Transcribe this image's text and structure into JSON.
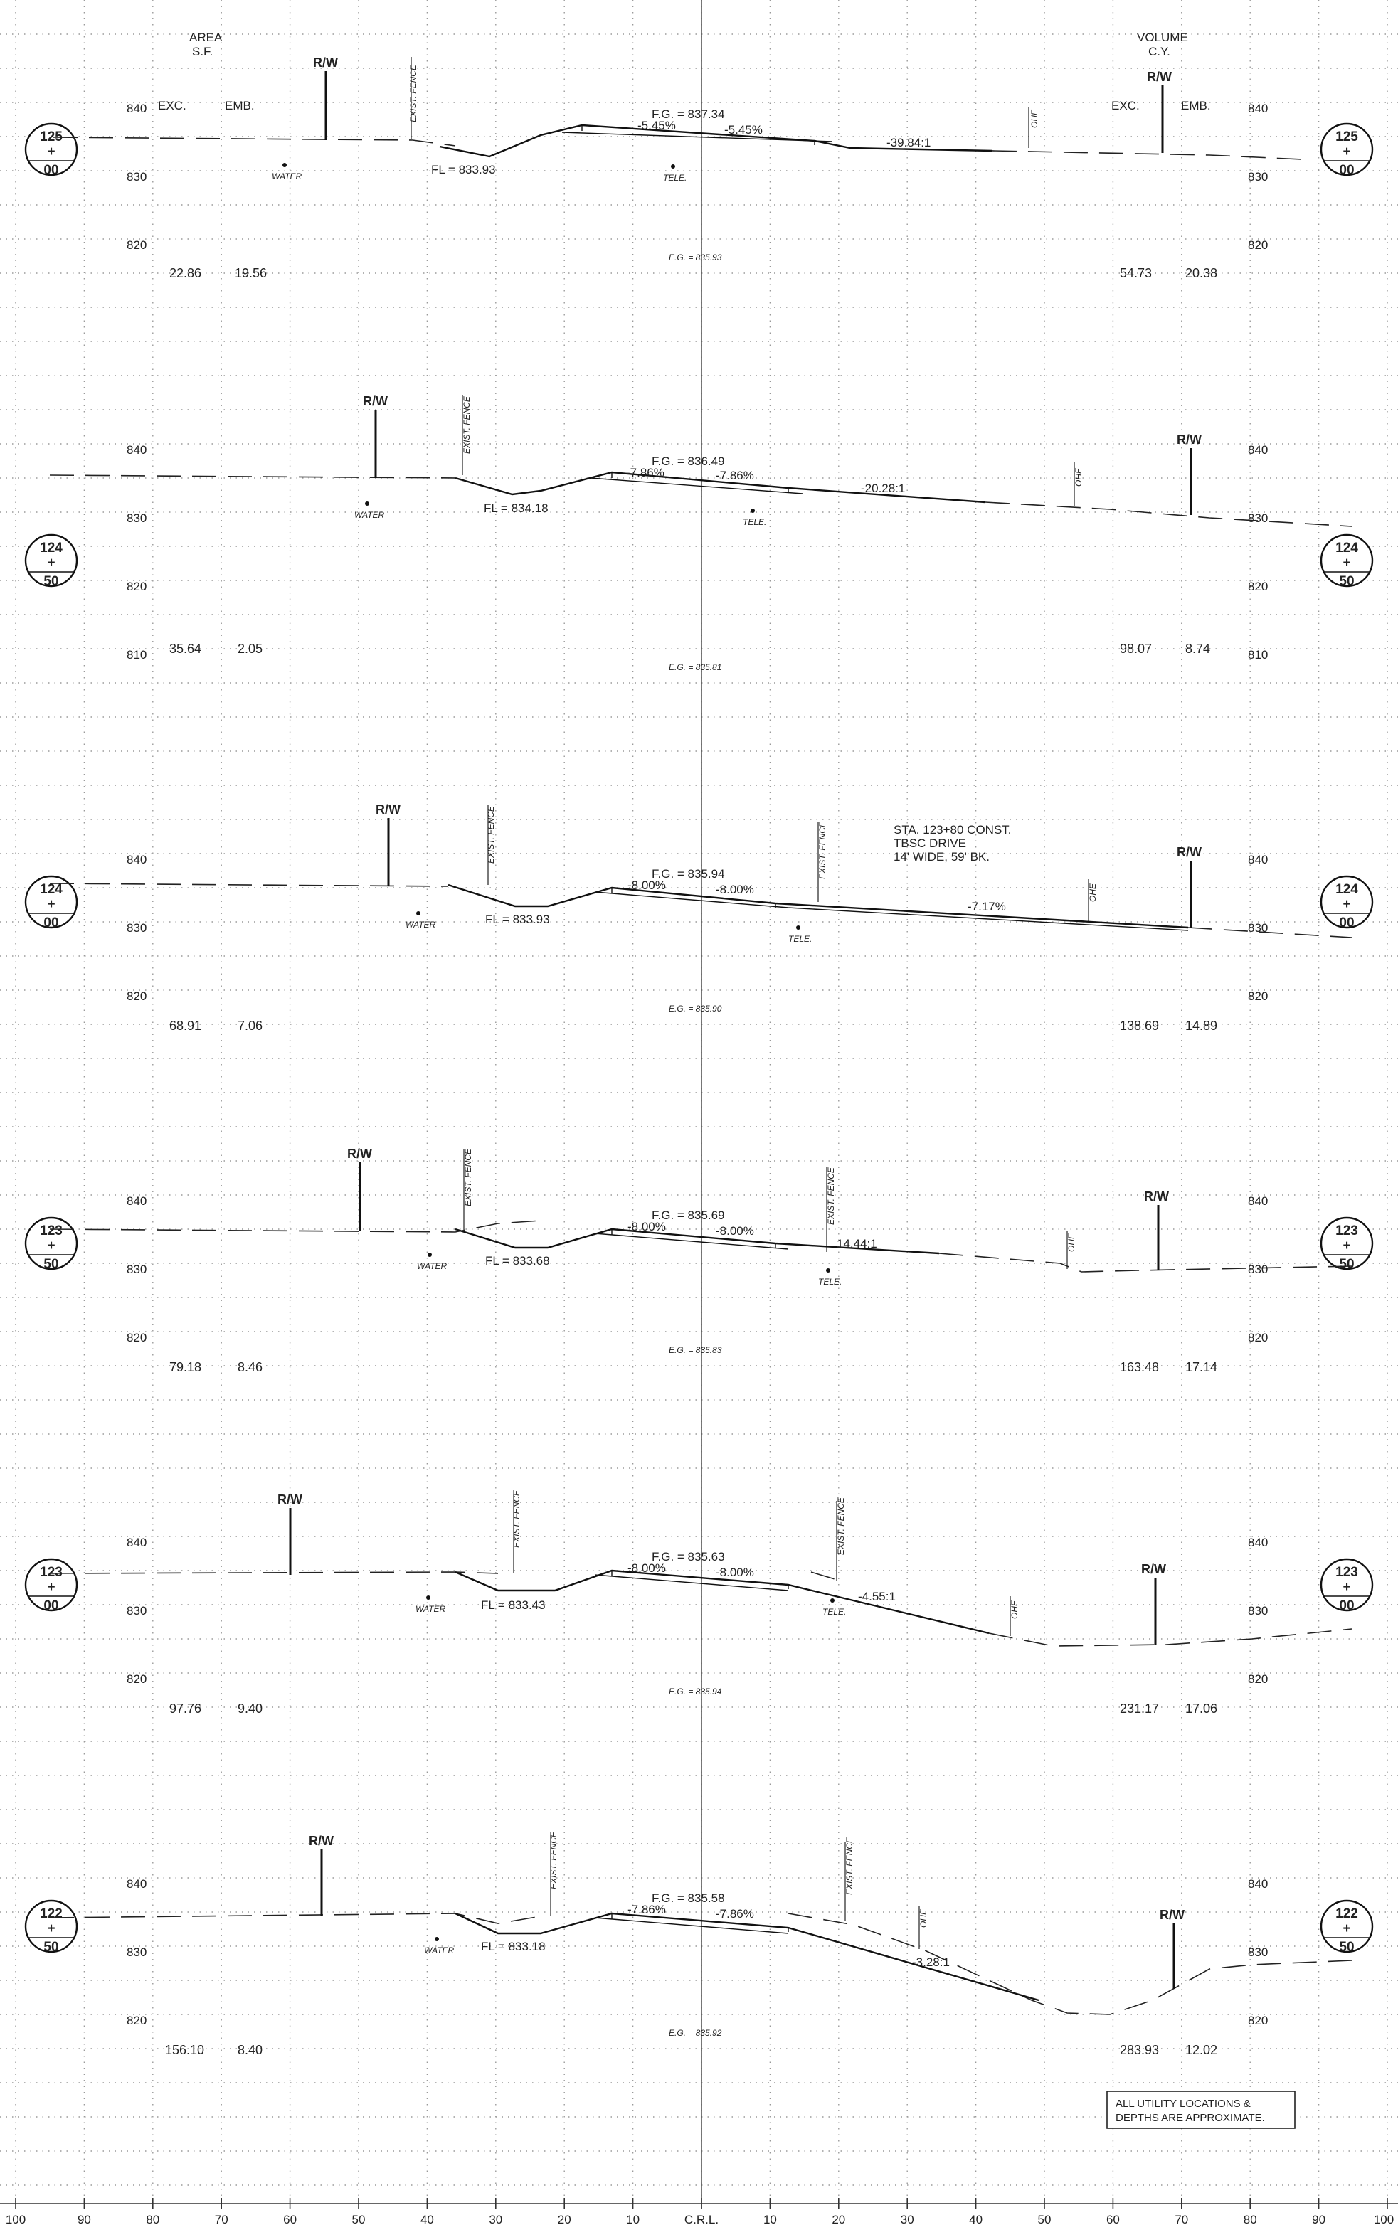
{
  "headers": {
    "area_title": "AREA",
    "area_unit": "S.F.",
    "volume_title": "VOLUME",
    "volume_unit": "C.Y.",
    "exc": "EXC.",
    "emb": "EMB."
  },
  "common": {
    "rw": "R/W",
    "water": "WATER",
    "tele": "TELE.",
    "ohe": "OHE",
    "fence": "EXIST. FENCE"
  },
  "sections": [
    {
      "station": [
        "125",
        "+",
        "00"
      ],
      "elev_labels": [
        "840",
        "830",
        "820"
      ],
      "fg": "F.G. = 837.34",
      "slope_l": "-5.45%",
      "slope_r": "-5.45%",
      "fl": "FL = 833.93",
      "side_slope": "-39.84:1",
      "eg": "E.G. = 835.93",
      "area_exc": "22.86",
      "area_emb": "19.56",
      "vol_exc": "54.73",
      "vol_emb": "20.38"
    },
    {
      "station": [
        "124",
        "+",
        "50"
      ],
      "elev_labels": [
        "840",
        "830",
        "820",
        "810"
      ],
      "fg": "F.G. = 836.49",
      "slope_l": "-7.86%",
      "slope_r": "-7.86%",
      "fl": "FL = 834.18",
      "side_slope": "-20.28:1",
      "eg": "E.G. = 835.81",
      "area_exc": "35.64",
      "area_emb": "2.05",
      "vol_exc": "98.07",
      "vol_emb": "8.74"
    },
    {
      "station": [
        "124",
        "+",
        "00"
      ],
      "elev_labels": [
        "840",
        "830",
        "820"
      ],
      "fg": "F.G. = 835.94",
      "slope_l": "-8.00%",
      "slope_r": "-8.00%",
      "fl": "FL = 833.93",
      "side_slope": "-7.17%",
      "eg": "E.G. = 835.90",
      "area_exc": "68.91",
      "area_emb": "7.06",
      "vol_exc": "138.69",
      "vol_emb": "14.89",
      "note": [
        "STA. 123+80 CONST.",
        "TBSC DRIVE",
        "14' WIDE, 59' BK."
      ]
    },
    {
      "station": [
        "123",
        "+",
        "50"
      ],
      "elev_labels": [
        "840",
        "830",
        "820"
      ],
      "fg": "F.G. = 835.69",
      "slope_l": "-8.00%",
      "slope_r": "-8.00%",
      "fl": "FL = 833.68",
      "side_slope": "14.44:1",
      "eg": "E.G. = 835.83",
      "area_exc": "79.18",
      "area_emb": "8.46",
      "vol_exc": "163.48",
      "vol_emb": "17.14"
    },
    {
      "station": [
        "123",
        "+",
        "00"
      ],
      "elev_labels": [
        "840",
        "830",
        "820"
      ],
      "fg": "F.G. = 835.63",
      "slope_l": "-8.00%",
      "slope_r": "-8.00%",
      "fl": "FL = 833.43",
      "side_slope": "-4.55:1",
      "eg": "E.G. = 835.94",
      "area_exc": "97.76",
      "area_emb": "9.40",
      "vol_exc": "231.17",
      "vol_emb": "17.06"
    },
    {
      "station": [
        "122",
        "+",
        "50"
      ],
      "elev_labels": [
        "840",
        "830",
        "820"
      ],
      "fg": "F.G. = 835.58",
      "slope_l": "-7.86%",
      "slope_r": "-7.86%",
      "fl": "FL = 833.18",
      "side_slope": "-3.28:1",
      "eg": "E.G. = 835.92",
      "area_exc": "156.10",
      "area_emb": "8.40",
      "vol_exc": "283.93",
      "vol_emb": "12.02"
    }
  ],
  "offset_labels": [
    "100",
    "90",
    "80",
    "70",
    "60",
    "50",
    "40",
    "30",
    "20",
    "10",
    "C.R.L.",
    "10",
    "20",
    "30",
    "40",
    "50",
    "60",
    "70",
    "80",
    "90",
    "100"
  ],
  "footnote": [
    "ALL UTILITY LOCATIONS &",
    "DEPTHS ARE APPROXIMATE."
  ]
}
